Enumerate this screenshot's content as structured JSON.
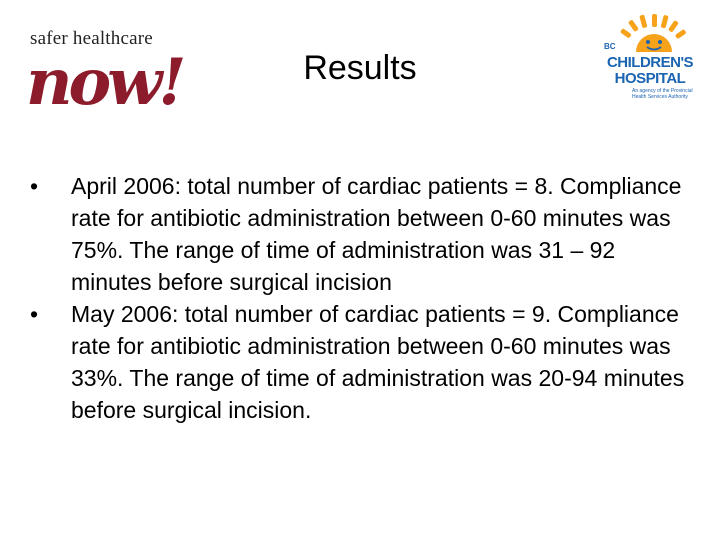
{
  "logo_left": {
    "tagline": "safer healthcare",
    "wordmark": "now!"
  },
  "title": "Results",
  "logo_right": {
    "prefix": "BC",
    "line1": "CHILDREN'S",
    "line2": "HOSPITAL",
    "subtitle": "An agency of the Provincial Health Services Authority",
    "sun_color": "#f7a21b",
    "text_color": "#1b64b1"
  },
  "bullet_glyph": "•",
  "bullets": [
    "April 2006: total number of cardiac patients = 8. Compliance rate for antibiotic administration between 0-60 minutes was 75%. The range of time of administration was 31 – 92 minutes before surgical incision",
    "May 2006: total number of cardiac patients = 9. Compliance rate for antibiotic administration between 0-60 minutes was 33%. The range of time of administration was 20-94 minutes before surgical incision."
  ]
}
